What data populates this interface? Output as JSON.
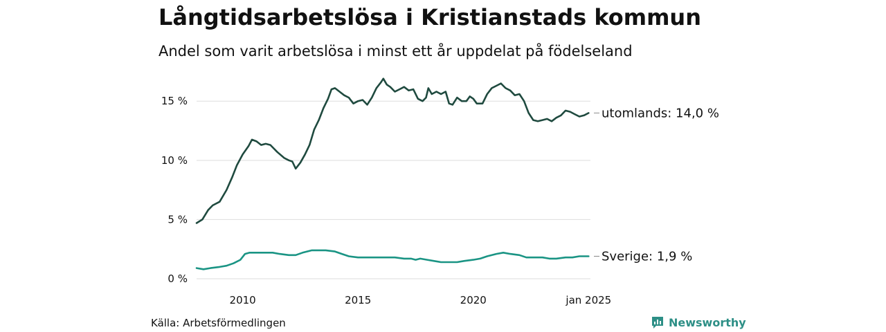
{
  "header": {
    "title": "Långtidsarbetslösa i Kristianstads kommun",
    "subtitle": "Andel som varit arbetslösa i minst ett år uppdelat på födelseland"
  },
  "footer": {
    "source": "Källa: Arbetsförmedlingen",
    "brand": "Newsworthy"
  },
  "colors": {
    "utomlands": "#1f4a3f",
    "sverige": "#1a9484",
    "grid": "#dddddd",
    "brand": "#2d8f86"
  },
  "chart_data": {
    "type": "line",
    "grid": "horizontal",
    "ylim": [
      0,
      17
    ],
    "xlim": [
      2008.0,
      2025.08
    ],
    "yticks": [
      {
        "value": 0,
        "label": "0 %"
      },
      {
        "value": 5,
        "label": "5 %"
      },
      {
        "value": 10,
        "label": "10 %"
      },
      {
        "value": 15,
        "label": "15 %"
      }
    ],
    "xticks": [
      {
        "value": 2010.0,
        "label": "2010"
      },
      {
        "value": 2015.0,
        "label": "2015"
      },
      {
        "value": 2020.0,
        "label": "2020"
      },
      {
        "value": 2025.0,
        "label": "jan 2025"
      }
    ],
    "series": [
      {
        "name": "utomlands",
        "end_label": "utomlands: 14,0 %",
        "points": [
          [
            2008.0,
            4.7
          ],
          [
            2008.25,
            5.0
          ],
          [
            2008.5,
            5.8
          ],
          [
            2008.7,
            6.2
          ],
          [
            2009.0,
            6.5
          ],
          [
            2009.3,
            7.5
          ],
          [
            2009.55,
            8.6
          ],
          [
            2009.75,
            9.6
          ],
          [
            2010.0,
            10.5
          ],
          [
            2010.25,
            11.2
          ],
          [
            2010.4,
            11.75
          ],
          [
            2010.6,
            11.6
          ],
          [
            2010.8,
            11.3
          ],
          [
            2011.0,
            11.4
          ],
          [
            2011.2,
            11.3
          ],
          [
            2011.5,
            10.7
          ],
          [
            2011.8,
            10.2
          ],
          [
            2012.0,
            10.0
          ],
          [
            2012.15,
            9.9
          ],
          [
            2012.3,
            9.3
          ],
          [
            2012.5,
            9.8
          ],
          [
            2012.7,
            10.5
          ],
          [
            2012.9,
            11.3
          ],
          [
            2013.1,
            12.6
          ],
          [
            2013.3,
            13.4
          ],
          [
            2013.5,
            14.4
          ],
          [
            2013.7,
            15.2
          ],
          [
            2013.85,
            16.0
          ],
          [
            2014.0,
            16.1
          ],
          [
            2014.2,
            15.8
          ],
          [
            2014.4,
            15.5
          ],
          [
            2014.6,
            15.3
          ],
          [
            2014.8,
            14.8
          ],
          [
            2015.0,
            15.0
          ],
          [
            2015.2,
            15.1
          ],
          [
            2015.4,
            14.7
          ],
          [
            2015.6,
            15.3
          ],
          [
            2015.8,
            16.1
          ],
          [
            2016.0,
            16.6
          ],
          [
            2016.1,
            16.9
          ],
          [
            2016.25,
            16.4
          ],
          [
            2016.4,
            16.2
          ],
          [
            2016.6,
            15.8
          ],
          [
            2016.8,
            16.0
          ],
          [
            2017.0,
            16.2
          ],
          [
            2017.2,
            15.9
          ],
          [
            2017.4,
            16.0
          ],
          [
            2017.6,
            15.2
          ],
          [
            2017.8,
            15.0
          ],
          [
            2017.95,
            15.3
          ],
          [
            2018.05,
            16.1
          ],
          [
            2018.2,
            15.6
          ],
          [
            2018.4,
            15.8
          ],
          [
            2018.6,
            15.6
          ],
          [
            2018.8,
            15.8
          ],
          [
            2018.95,
            14.8
          ],
          [
            2019.1,
            14.7
          ],
          [
            2019.3,
            15.3
          ],
          [
            2019.5,
            15.0
          ],
          [
            2019.7,
            15.0
          ],
          [
            2019.85,
            15.4
          ],
          [
            2020.0,
            15.2
          ],
          [
            2020.15,
            14.8
          ],
          [
            2020.4,
            14.8
          ],
          [
            2020.6,
            15.6
          ],
          [
            2020.8,
            16.1
          ],
          [
            2021.0,
            16.3
          ],
          [
            2021.2,
            16.5
          ],
          [
            2021.4,
            16.1
          ],
          [
            2021.6,
            15.9
          ],
          [
            2021.8,
            15.5
          ],
          [
            2022.0,
            15.6
          ],
          [
            2022.2,
            15.0
          ],
          [
            2022.4,
            14.0
          ],
          [
            2022.6,
            13.4
          ],
          [
            2022.8,
            13.3
          ],
          [
            2023.0,
            13.4
          ],
          [
            2023.2,
            13.5
          ],
          [
            2023.4,
            13.3
          ],
          [
            2023.6,
            13.6
          ],
          [
            2023.8,
            13.8
          ],
          [
            2024.0,
            14.2
          ],
          [
            2024.2,
            14.1
          ],
          [
            2024.4,
            13.9
          ],
          [
            2024.6,
            13.7
          ],
          [
            2024.8,
            13.8
          ],
          [
            2025.0,
            14.0
          ]
        ]
      },
      {
        "name": "Sverige",
        "end_label": "Sverige:  1,9 %",
        "points": [
          [
            2008.0,
            0.9
          ],
          [
            2008.3,
            0.8
          ],
          [
            2008.6,
            0.9
          ],
          [
            2009.0,
            1.0
          ],
          [
            2009.3,
            1.1
          ],
          [
            2009.6,
            1.3
          ],
          [
            2009.9,
            1.6
          ],
          [
            2010.1,
            2.1
          ],
          [
            2010.3,
            2.2
          ],
          [
            2010.6,
            2.2
          ],
          [
            2011.0,
            2.2
          ],
          [
            2011.3,
            2.2
          ],
          [
            2011.6,
            2.1
          ],
          [
            2012.0,
            2.0
          ],
          [
            2012.3,
            2.0
          ],
          [
            2012.6,
            2.2
          ],
          [
            2013.0,
            2.4
          ],
          [
            2013.3,
            2.4
          ],
          [
            2013.6,
            2.4
          ],
          [
            2014.0,
            2.3
          ],
          [
            2014.3,
            2.1
          ],
          [
            2014.6,
            1.9
          ],
          [
            2015.0,
            1.8
          ],
          [
            2015.3,
            1.8
          ],
          [
            2015.6,
            1.8
          ],
          [
            2016.0,
            1.8
          ],
          [
            2016.3,
            1.8
          ],
          [
            2016.6,
            1.8
          ],
          [
            2017.0,
            1.7
          ],
          [
            2017.3,
            1.7
          ],
          [
            2017.5,
            1.6
          ],
          [
            2017.7,
            1.7
          ],
          [
            2018.0,
            1.6
          ],
          [
            2018.3,
            1.5
          ],
          [
            2018.6,
            1.4
          ],
          [
            2019.0,
            1.4
          ],
          [
            2019.3,
            1.4
          ],
          [
            2019.6,
            1.5
          ],
          [
            2020.0,
            1.6
          ],
          [
            2020.3,
            1.7
          ],
          [
            2020.6,
            1.9
          ],
          [
            2021.0,
            2.1
          ],
          [
            2021.3,
            2.2
          ],
          [
            2021.6,
            2.1
          ],
          [
            2022.0,
            2.0
          ],
          [
            2022.3,
            1.8
          ],
          [
            2022.6,
            1.8
          ],
          [
            2023.0,
            1.8
          ],
          [
            2023.3,
            1.7
          ],
          [
            2023.6,
            1.7
          ],
          [
            2024.0,
            1.8
          ],
          [
            2024.3,
            1.8
          ],
          [
            2024.6,
            1.9
          ],
          [
            2025.0,
            1.9
          ]
        ]
      }
    ]
  }
}
